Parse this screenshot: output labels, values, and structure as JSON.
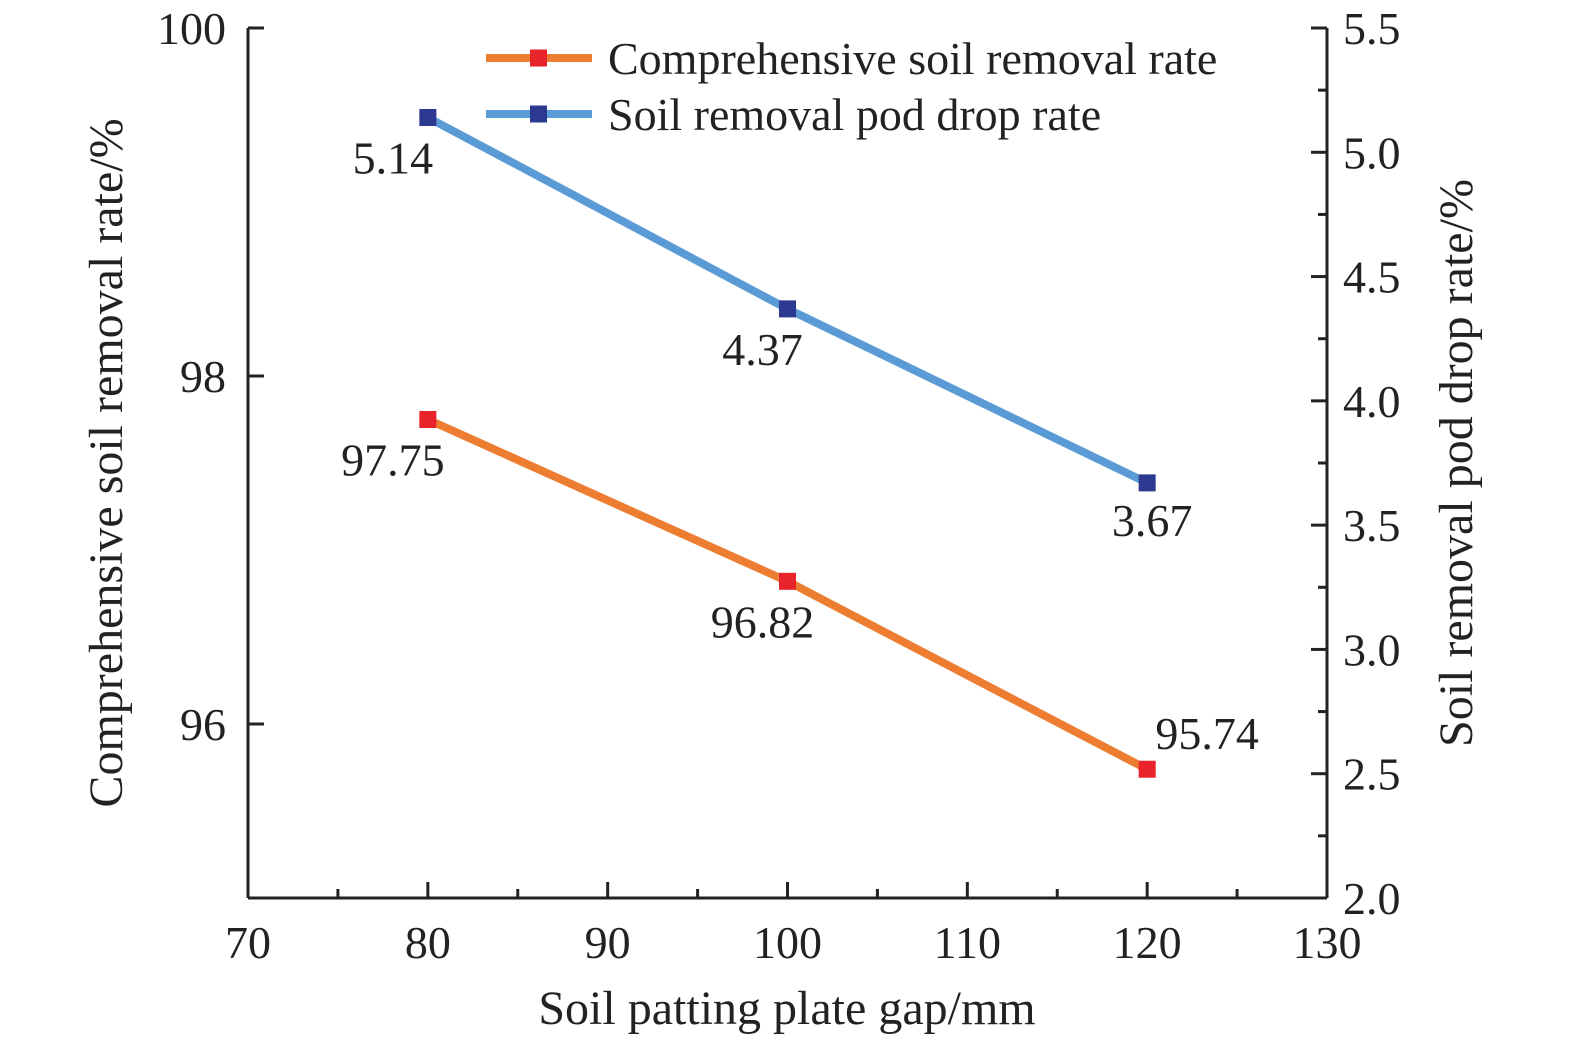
{
  "chart_data": {
    "type": "line",
    "title": "",
    "xlabel": "Soil patting plate gap/mm",
    "ylabel_left": "Comprehensive soil removal rate/%",
    "ylabel_right": "Soil removal pod drop rate/%",
    "x": [
      80,
      100,
      120
    ],
    "xlim": [
      70,
      130
    ],
    "xticks": [
      70,
      80,
      90,
      100,
      110,
      120,
      130
    ],
    "ylim_left": [
      95,
      100
    ],
    "yticks_left": [
      96,
      98,
      100
    ],
    "ylim_right": [
      2.0,
      5.5
    ],
    "yticks_right": [
      "2.0",
      "2.5",
      "3.0",
      "3.5",
      "4.0",
      "4.5",
      "5.0",
      "5.5"
    ],
    "grid": false,
    "legend_position": "top-right",
    "series": [
      {
        "name": "Comprehensive soil removal rate",
        "axis": "left",
        "color": "#ED7D31",
        "marker_color": "#E8232A",
        "values": [
          97.75,
          96.82,
          95.74
        ],
        "labels": [
          "97.75",
          "96.82",
          "95.74"
        ]
      },
      {
        "name": "Soil removal pod drop rate",
        "axis": "right",
        "color": "#5B9BD5",
        "marker_color": "#2B3990",
        "values": [
          5.14,
          4.37,
          3.67
        ],
        "labels": [
          "5.14",
          "4.37",
          "3.67"
        ]
      }
    ]
  }
}
